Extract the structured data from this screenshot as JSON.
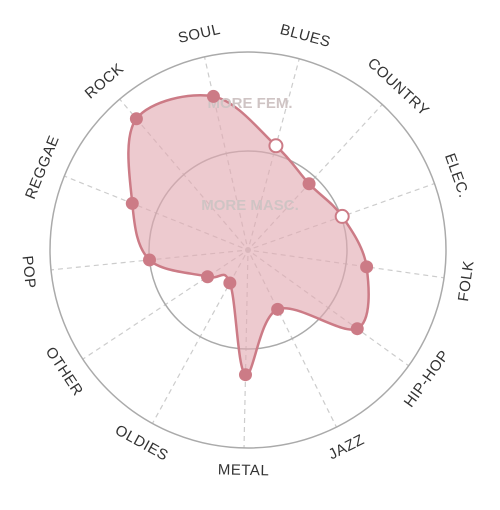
{
  "chart_data": {
    "type": "radar",
    "categories": [
      "BLUES",
      "COUNTRY",
      "ELEC.",
      "FOLK",
      "HIP-HOP",
      "JAZZ",
      "METAL",
      "OLDIES",
      "OTHER",
      "POP",
      "REGGAE",
      "ROCK",
      "SOUL"
    ],
    "series": [
      {
        "values": [
          1.09,
          0.91,
          1.01,
          1.21,
          1.36,
          0.67,
          1.26,
          0.38,
          0.49,
          1.0,
          1.26,
          1.74,
          1.59
        ],
        "highlighted": [
          "BLUES",
          "ELEC."
        ]
      }
    ],
    "rings": [
      {
        "value": 1,
        "label": "MORE MASC."
      },
      {
        "value": 2,
        "label": "MORE FEM."
      }
    ],
    "rlim": [
      0,
      2
    ],
    "grid": true
  },
  "colors": {
    "fill": "#e2aab1",
    "stroke": "#cc7b86",
    "point": "#cc7b86",
    "highlight_point": "#ffffff",
    "ring": "#aaaaaa",
    "spoke": "#cccccc",
    "label": "#333333",
    "ring_label": "#cfc4c4"
  }
}
